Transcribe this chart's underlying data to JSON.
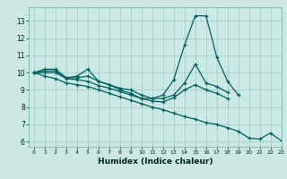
{
  "title": "",
  "xlabel": "Humidex (Indice chaleur)",
  "bg_color": "#cce8e4",
  "grid_color": "#aacfcb",
  "line_color": "#006060",
  "xlim": [
    -0.5,
    23
  ],
  "ylim": [
    5.7,
    13.8
  ],
  "yticks": [
    6,
    7,
    8,
    9,
    10,
    11,
    12,
    13
  ],
  "xticks": [
    0,
    1,
    2,
    3,
    4,
    5,
    6,
    7,
    8,
    9,
    10,
    11,
    12,
    13,
    14,
    15,
    16,
    17,
    18,
    19,
    20,
    21,
    22,
    23
  ],
  "series": [
    [
      10.0,
      10.2,
      10.2,
      9.7,
      9.8,
      10.2,
      9.5,
      9.3,
      9.0,
      8.8,
      8.5,
      8.5,
      8.7,
      9.6,
      11.6,
      13.3,
      13.3,
      10.9,
      9.5,
      8.7,
      null,
      null,
      null,
      null
    ],
    [
      10.0,
      10.1,
      10.1,
      9.7,
      9.7,
      9.8,
      9.5,
      9.3,
      9.1,
      9.0,
      8.7,
      8.5,
      8.5,
      8.7,
      9.4,
      10.5,
      9.4,
      9.2,
      8.85,
      null,
      null,
      null,
      null,
      null
    ],
    [
      10.0,
      10.0,
      10.0,
      9.65,
      9.6,
      9.5,
      9.25,
      9.1,
      8.9,
      8.7,
      8.5,
      8.35,
      8.3,
      8.55,
      9.0,
      9.3,
      9.0,
      8.8,
      8.5,
      null,
      null,
      null,
      null,
      null
    ],
    [
      10.0,
      9.8,
      9.65,
      9.4,
      9.3,
      9.2,
      9.0,
      8.8,
      8.6,
      8.4,
      8.2,
      8.0,
      7.85,
      7.65,
      7.45,
      7.3,
      7.1,
      7.0,
      6.8,
      6.6,
      6.2,
      6.15,
      6.5,
      6.05
    ]
  ]
}
